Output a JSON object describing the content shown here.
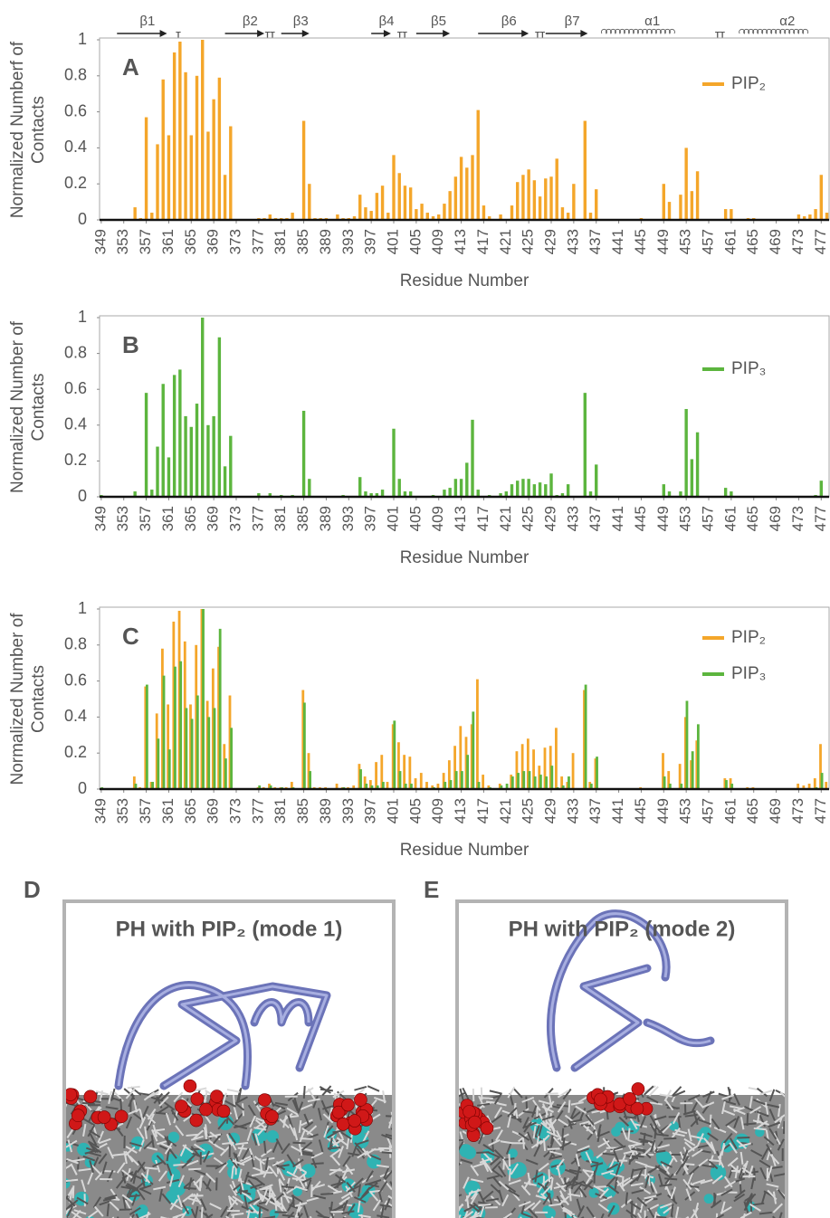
{
  "chart_data": [
    {
      "type": "bar",
      "panel_label": "A",
      "ylabel": [
        "Normalized Numberf of",
        "Contacts"
      ],
      "xlabel": "Residue Number",
      "x": [
        349,
        350,
        351,
        352,
        353,
        354,
        355,
        356,
        357,
        358,
        359,
        360,
        361,
        362,
        363,
        364,
        365,
        366,
        367,
        368,
        369,
        370,
        371,
        372,
        373,
        374,
        375,
        376,
        377,
        378,
        379,
        380,
        381,
        382,
        383,
        384,
        385,
        386,
        387,
        388,
        389,
        390,
        391,
        392,
        393,
        394,
        395,
        396,
        397,
        398,
        399,
        400,
        401,
        402,
        403,
        404,
        405,
        406,
        407,
        408,
        409,
        410,
        411,
        412,
        413,
        414,
        415,
        416,
        417,
        418,
        419,
        420,
        421,
        422,
        423,
        424,
        425,
        426,
        427,
        428,
        429,
        430,
        431,
        432,
        433,
        434,
        435,
        436,
        437,
        438,
        439,
        440,
        441,
        442,
        443,
        444,
        445,
        446,
        447,
        448,
        449,
        450,
        451,
        452,
        453,
        454,
        455,
        456,
        457,
        458,
        459,
        460,
        461,
        462,
        463,
        464,
        465,
        466,
        467,
        468,
        469,
        470,
        471,
        472,
        473,
        474,
        475,
        476,
        477,
        478
      ],
      "series": [
        {
          "name": "PIP₂",
          "color": "#f4a62a",
          "values": [
            0,
            0,
            0,
            0,
            0,
            0,
            0.07,
            0.01,
            0.57,
            0.04,
            0.42,
            0.78,
            0.47,
            0.93,
            0.99,
            0.82,
            0.47,
            0.8,
            1,
            0.49,
            0.67,
            0.79,
            0.25,
            0.52,
            0,
            0,
            0,
            0,
            0.01,
            0.01,
            0.03,
            0.01,
            0.01,
            0.01,
            0.04,
            0,
            0.55,
            0.2,
            0.01,
            0.01,
            0.01,
            0,
            0.03,
            0.01,
            0.01,
            0.02,
            0.14,
            0.07,
            0.05,
            0.15,
            0.19,
            0.04,
            0.36,
            0.26,
            0.19,
            0.18,
            0.06,
            0.09,
            0.04,
            0.02,
            0.03,
            0.09,
            0.16,
            0.24,
            0.35,
            0.29,
            0.36,
            0.61,
            0.08,
            0.02,
            0,
            0.03,
            0,
            0.08,
            0.21,
            0.25,
            0.28,
            0.22,
            0.13,
            0.23,
            0.24,
            0.34,
            0.07,
            0.04,
            0.2,
            0,
            0.55,
            0.04,
            0.17,
            0,
            0,
            0,
            0,
            0,
            0,
            0,
            0.01,
            0,
            0,
            0,
            0.2,
            0.1,
            0,
            0.14,
            0.4,
            0.16,
            0.27,
            0,
            0,
            0,
            0,
            0.06,
            0.06,
            0,
            0,
            0.01,
            0.01,
            0,
            0,
            0,
            0,
            0,
            0,
            0,
            0.03,
            0.02,
            0.03,
            0.06,
            0.25,
            0.04
          ]
        }
      ],
      "xlim": [
        348.7,
        478.4
      ],
      "xticks": [
        349,
        353,
        357,
        361,
        365,
        369,
        373,
        377,
        381,
        385,
        389,
        393,
        397,
        401,
        405,
        409,
        413,
        417,
        421,
        425,
        429,
        433,
        437,
        441,
        445,
        449,
        453,
        457,
        461,
        465,
        469,
        473,
        477
      ],
      "ylim": [
        0,
        1
      ],
      "yticks": [
        0,
        0.2,
        0.4,
        0.6,
        0.8,
        1
      ],
      "legend": "upper right",
      "secondary_structure": [
        {
          "label": "β1",
          "kind": "strand",
          "start": 351.8,
          "end": 360.7
        },
        {
          "label": "β2",
          "kind": "strand",
          "start": 371,
          "end": 378
        },
        {
          "label": "β3",
          "kind": "strand",
          "start": 381,
          "end": 386
        },
        {
          "label": "β4",
          "kind": "strand",
          "start": 397,
          "end": 400.5
        },
        {
          "label": "β5",
          "kind": "strand",
          "start": 405,
          "end": 411
        },
        {
          "label": "β6",
          "kind": "strand",
          "start": 416,
          "end": 425
        },
        {
          "label": "β7",
          "kind": "strand",
          "start": 428,
          "end": 435.5
        },
        {
          "label": "α1",
          "kind": "helix",
          "start": 438,
          "end": 454
        },
        {
          "label": "α2",
          "kind": "helix",
          "start": 462.5,
          "end": 477.5
        }
      ],
      "turns": [
        {
          "label": "T",
          "x": 362.7
        },
        {
          "label": "TT",
          "x": 379
        },
        {
          "label": "TT",
          "x": 402.5
        },
        {
          "label": "TT",
          "x": 427
        },
        {
          "label": "TT",
          "x": 459
        }
      ]
    },
    {
      "type": "bar",
      "panel_label": "B",
      "ylabel": [
        "Normalized Number of",
        "Contacts"
      ],
      "xlabel": "Residue Number",
      "x": [
        349,
        350,
        351,
        352,
        353,
        354,
        355,
        356,
        357,
        358,
        359,
        360,
        361,
        362,
        363,
        364,
        365,
        366,
        367,
        368,
        369,
        370,
        371,
        372,
        373,
        374,
        375,
        376,
        377,
        378,
        379,
        380,
        381,
        382,
        383,
        384,
        385,
        386,
        387,
        388,
        389,
        390,
        391,
        392,
        393,
        394,
        395,
        396,
        397,
        398,
        399,
        400,
        401,
        402,
        403,
        404,
        405,
        406,
        407,
        408,
        409,
        410,
        411,
        412,
        413,
        414,
        415,
        416,
        417,
        418,
        419,
        420,
        421,
        422,
        423,
        424,
        425,
        426,
        427,
        428,
        429,
        430,
        431,
        432,
        433,
        434,
        435,
        436,
        437,
        438,
        439,
        440,
        441,
        442,
        443,
        444,
        445,
        446,
        447,
        448,
        449,
        450,
        451,
        452,
        453,
        454,
        455,
        456,
        457,
        458,
        459,
        460,
        461,
        462,
        463,
        464,
        465,
        466,
        467,
        468,
        469,
        470,
        471,
        472,
        473,
        474,
        475,
        476,
        477,
        478
      ],
      "series": [
        {
          "name": "PIP₃",
          "color": "#5cb53e",
          "values": [
            0.01,
            0,
            0,
            0,
            0,
            0,
            0.03,
            0,
            0.58,
            0.04,
            0.28,
            0.63,
            0.22,
            0.68,
            0.71,
            0.45,
            0.39,
            0.52,
            1,
            0.4,
            0.45,
            0.89,
            0.17,
            0.34,
            0,
            0,
            0,
            0,
            0.02,
            0,
            0.02,
            0,
            0.01,
            0,
            0.01,
            0,
            0.48,
            0.1,
            0,
            0,
            0,
            0,
            0,
            0.01,
            0,
            0,
            0.11,
            0.03,
            0.02,
            0.02,
            0.04,
            0,
            0.38,
            0.1,
            0.03,
            0.03,
            0,
            0,
            0,
            0.01,
            0,
            0.04,
            0.05,
            0.1,
            0.1,
            0.19,
            0.43,
            0.04,
            0,
            0.01,
            0,
            0.02,
            0.03,
            0.07,
            0.09,
            0.1,
            0.1,
            0.07,
            0.08,
            0.07,
            0.13,
            0.01,
            0.02,
            0.07,
            0,
            0,
            0.58,
            0.03,
            0.18,
            0,
            0,
            0,
            0,
            0,
            0,
            0,
            0,
            0,
            0,
            0,
            0.07,
            0.03,
            0,
            0.03,
            0.49,
            0.21,
            0.36,
            0,
            0,
            0,
            0,
            0.05,
            0.03,
            0,
            0,
            0,
            0,
            0,
            0,
            0,
            0,
            0,
            0,
            0,
            0,
            0,
            0,
            0.01,
            0.09,
            0
          ]
        }
      ],
      "xlim": [
        348.7,
        478.4
      ],
      "xticks": [
        349,
        353,
        357,
        361,
        365,
        369,
        373,
        377,
        381,
        385,
        389,
        393,
        397,
        401,
        405,
        409,
        413,
        417,
        421,
        425,
        429,
        433,
        437,
        441,
        445,
        449,
        453,
        457,
        461,
        465,
        469,
        473,
        477
      ],
      "ylim": [
        0,
        1
      ],
      "yticks": [
        0,
        0.2,
        0.4,
        0.6,
        0.8,
        1
      ],
      "legend": "upper right"
    },
    {
      "type": "bar",
      "panel_label": "C",
      "ylabel": [
        "Normalized Number of",
        "Contacts"
      ],
      "xlabel": "Residue Number",
      "x": [
        349,
        350,
        351,
        352,
        353,
        354,
        355,
        356,
        357,
        358,
        359,
        360,
        361,
        362,
        363,
        364,
        365,
        366,
        367,
        368,
        369,
        370,
        371,
        372,
        373,
        374,
        375,
        376,
        377,
        378,
        379,
        380,
        381,
        382,
        383,
        384,
        385,
        386,
        387,
        388,
        389,
        390,
        391,
        392,
        393,
        394,
        395,
        396,
        397,
        398,
        399,
        400,
        401,
        402,
        403,
        404,
        405,
        406,
        407,
        408,
        409,
        410,
        411,
        412,
        413,
        414,
        415,
        416,
        417,
        418,
        419,
        420,
        421,
        422,
        423,
        424,
        425,
        426,
        427,
        428,
        429,
        430,
        431,
        432,
        433,
        434,
        435,
        436,
        437,
        438,
        439,
        440,
        441,
        442,
        443,
        444,
        445,
        446,
        447,
        448,
        449,
        450,
        451,
        452,
        453,
        454,
        455,
        456,
        457,
        458,
        459,
        460,
        461,
        462,
        463,
        464,
        465,
        466,
        467,
        468,
        469,
        470,
        471,
        472,
        473,
        474,
        475,
        476,
        477,
        478
      ],
      "series": [
        {
          "name": "PIP₂",
          "color": "#f4a62a",
          "values": [
            0,
            0,
            0,
            0,
            0,
            0,
            0.07,
            0.01,
            0.57,
            0.04,
            0.42,
            0.78,
            0.47,
            0.93,
            0.99,
            0.82,
            0.47,
            0.8,
            1,
            0.49,
            0.67,
            0.79,
            0.25,
            0.52,
            0,
            0,
            0,
            0,
            0.01,
            0.01,
            0.03,
            0.01,
            0.01,
            0.01,
            0.04,
            0,
            0.55,
            0.2,
            0.01,
            0.01,
            0.01,
            0,
            0.03,
            0.01,
            0.01,
            0.02,
            0.14,
            0.07,
            0.05,
            0.15,
            0.19,
            0.04,
            0.36,
            0.26,
            0.19,
            0.18,
            0.06,
            0.09,
            0.04,
            0.02,
            0.03,
            0.09,
            0.16,
            0.24,
            0.35,
            0.29,
            0.36,
            0.61,
            0.08,
            0.02,
            0,
            0.03,
            0,
            0.08,
            0.21,
            0.25,
            0.28,
            0.22,
            0.13,
            0.23,
            0.24,
            0.34,
            0.07,
            0.04,
            0.2,
            0,
            0.55,
            0.04,
            0.17,
            0,
            0,
            0,
            0,
            0,
            0,
            0,
            0.01,
            0,
            0,
            0,
            0.2,
            0.1,
            0,
            0.14,
            0.4,
            0.16,
            0.27,
            0,
            0,
            0,
            0,
            0.06,
            0.06,
            0,
            0,
            0.01,
            0.01,
            0,
            0,
            0,
            0,
            0,
            0,
            0,
            0.03,
            0.02,
            0.03,
            0.06,
            0.25,
            0.04
          ]
        },
        {
          "name": "PIP₃",
          "color": "#5cb53e",
          "values": [
            0.01,
            0,
            0,
            0,
            0,
            0,
            0.03,
            0,
            0.58,
            0.04,
            0.28,
            0.63,
            0.22,
            0.68,
            0.71,
            0.45,
            0.39,
            0.52,
            1,
            0.4,
            0.45,
            0.89,
            0.17,
            0.34,
            0,
            0,
            0,
            0,
            0.02,
            0,
            0.02,
            0,
            0.01,
            0,
            0.01,
            0,
            0.48,
            0.1,
            0,
            0,
            0,
            0,
            0,
            0.01,
            0,
            0,
            0.11,
            0.03,
            0.02,
            0.02,
            0.04,
            0,
            0.38,
            0.1,
            0.03,
            0.03,
            0,
            0,
            0,
            0.01,
            0,
            0.04,
            0.05,
            0.1,
            0.1,
            0.19,
            0.43,
            0.04,
            0,
            0.01,
            0,
            0.02,
            0.03,
            0.07,
            0.09,
            0.1,
            0.1,
            0.07,
            0.08,
            0.07,
            0.13,
            0.01,
            0.02,
            0.07,
            0,
            0,
            0.58,
            0.03,
            0.18,
            0,
            0,
            0,
            0,
            0,
            0,
            0,
            0,
            0,
            0,
            0,
            0.07,
            0.03,
            0,
            0.03,
            0.49,
            0.21,
            0.36,
            0,
            0,
            0,
            0,
            0.05,
            0.03,
            0,
            0,
            0,
            0,
            0,
            0,
            0,
            0,
            0,
            0,
            0,
            0,
            0,
            0,
            0.01,
            0.09,
            0
          ]
        }
      ],
      "xlim": [
        348.7,
        478.4
      ],
      "xticks": [
        349,
        353,
        357,
        361,
        365,
        369,
        373,
        377,
        381,
        385,
        389,
        393,
        397,
        401,
        405,
        409,
        413,
        417,
        421,
        425,
        429,
        433,
        437,
        441,
        445,
        449,
        453,
        457,
        461,
        465,
        469,
        473,
        477
      ],
      "ylim": [
        0,
        1
      ],
      "yticks": [
        0,
        0.2,
        0.4,
        0.6,
        0.8,
        1
      ],
      "legend": "upper right"
    }
  ],
  "panels": [
    {
      "label": "D",
      "title": "PH with PIP₂ (mode 1)"
    },
    {
      "label": "E",
      "title": "PH with PIP₂ (mode 2)"
    }
  ]
}
